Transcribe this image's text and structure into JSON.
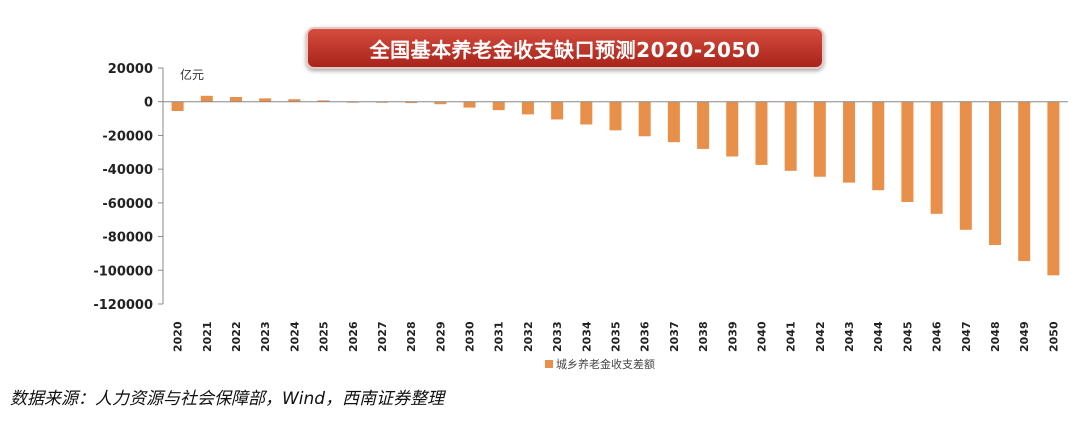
{
  "title": "全国基本养老金收支缺口预测2020-2050",
  "source": "数据来源：人力资源与社会保障部，Wind，西南证券整理",
  "chart_data": {
    "type": "bar",
    "title": "全国基本养老金收支缺口预测2020-2050",
    "ylabel": "亿元",
    "xlabel": "",
    "ylim": [
      -120000,
      20000
    ],
    "yticks": [
      20000,
      0,
      -20000,
      -40000,
      -60000,
      -80000,
      -100000,
      -120000
    ],
    "legend_position": "bottom",
    "grid": false,
    "bar_color": "#e8904a",
    "categories": [
      "2020",
      "2021",
      "2022",
      "2023",
      "2024",
      "2025",
      "2026",
      "2027",
      "2028",
      "2029",
      "2030",
      "2031",
      "2032",
      "2033",
      "2034",
      "2035",
      "2036",
      "2037",
      "2038",
      "2039",
      "2040",
      "2041",
      "2042",
      "2043",
      "2044",
      "2045",
      "2046",
      "2047",
      "2048",
      "2049",
      "2050"
    ],
    "series": [
      {
        "name": "城乡养老金收支差额",
        "values": [
          -5500,
          3500,
          2800,
          2000,
          1500,
          800,
          -300,
          -500,
          -800,
          -1500,
          -3500,
          -5000,
          -7500,
          -10500,
          -13500,
          -17000,
          -20500,
          -24000,
          -28000,
          -32500,
          -37500,
          -41000,
          -44500,
          -48000,
          -52500,
          -59500,
          -66500,
          -76000,
          -85000,
          -94500,
          -103000
        ]
      }
    ]
  }
}
